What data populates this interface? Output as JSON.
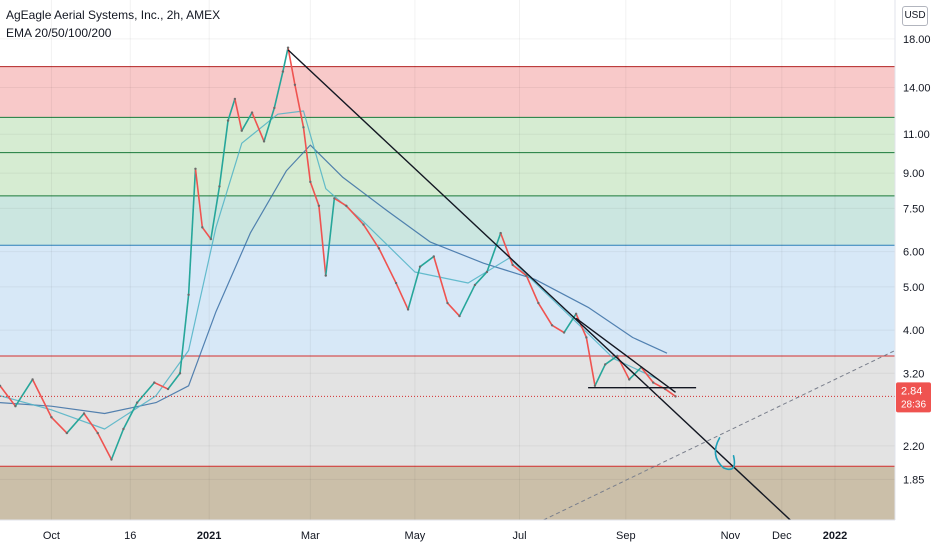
{
  "header": {
    "title": "AgEagle Aerial Systems, Inc., 2h, AMEX",
    "indicator": "EMA 20/50/100/200"
  },
  "currency_button": "USD",
  "price_badge": {
    "price": "2.84",
    "countdown": "28:36",
    "color": "#ef5350"
  },
  "chart_data": {
    "type": "line",
    "title": "AgEagle Aerial Systems, Inc., 2h, AMEX",
    "y_scale": "log",
    "ylim": [
      1.5,
      22.0
    ],
    "x_range": [
      "2020-09-01",
      "2022-02-05"
    ],
    "y_ticks": [
      {
        "v": 18.0,
        "label": "18.00"
      },
      {
        "v": 14.0,
        "label": "14.00"
      },
      {
        "v": 11.0,
        "label": "11.00"
      },
      {
        "v": 9.0,
        "label": "9.00"
      },
      {
        "v": 7.5,
        "label": "7.50"
      },
      {
        "v": 6.0,
        "label": "6.00"
      },
      {
        "v": 5.0,
        "label": "5.00"
      },
      {
        "v": 4.0,
        "label": "4.00"
      },
      {
        "v": 3.2,
        "label": "3.20"
      },
      {
        "v": 2.2,
        "label": "2.20"
      },
      {
        "v": 1.85,
        "label": "1.85"
      }
    ],
    "x_ticks": [
      {
        "d": "2020-10-01",
        "label": "Oct"
      },
      {
        "d": "2020-11-16",
        "label": "16"
      },
      {
        "d": "2021-01-01",
        "label": "2021"
      },
      {
        "d": "2021-03-01",
        "label": "Mar"
      },
      {
        "d": "2021-05-01",
        "label": "May"
      },
      {
        "d": "2021-07-01",
        "label": "Jul"
      },
      {
        "d": "2021-09-01",
        "label": "Sep"
      },
      {
        "d": "2021-11-01",
        "label": "Nov"
      },
      {
        "d": "2021-12-01",
        "label": "Dec"
      },
      {
        "d": "2022-01-01",
        "label": "2022"
      }
    ],
    "zones": [
      {
        "from": 12.0,
        "to": 15.6,
        "fill": "#f8c9c9",
        "border": "#b22222"
      },
      {
        "from": 8.0,
        "to": 12.0,
        "fill": "#d6ecd2",
        "border": "#1b7a3b"
      },
      {
        "from": 6.2,
        "to": 8.0,
        "fill": "#cbe6e0",
        "border": "#1b7a3b"
      },
      {
        "from": 3.5,
        "to": 6.2,
        "fill": "#d7e8f7",
        "border": "#2c7fb8"
      },
      {
        "from": 1.98,
        "to": 3.5,
        "fill": "#e3e3e3",
        "border": "#d32f2f"
      },
      {
        "from": 1.5,
        "to": 1.98,
        "fill": "#cbbfa9",
        "border": "#d32f2f"
      }
    ],
    "level_lines": [
      10.0
    ],
    "price": [
      [
        "2020-09-01",
        3.0
      ],
      [
        "2020-09-10",
        2.7
      ],
      [
        "2020-09-20",
        3.1
      ],
      [
        "2020-10-01",
        2.55
      ],
      [
        "2020-10-10",
        2.35
      ],
      [
        "2020-10-20",
        2.6
      ],
      [
        "2020-10-28",
        2.35
      ],
      [
        "2020-11-05",
        2.05
      ],
      [
        "2020-11-12",
        2.4
      ],
      [
        "2020-11-20",
        2.75
      ],
      [
        "2020-11-30",
        3.05
      ],
      [
        "2020-12-08",
        2.95
      ],
      [
        "2020-12-15",
        3.2
      ],
      [
        "2020-12-20",
        4.8
      ],
      [
        "2020-12-24",
        9.2
      ],
      [
        "2020-12-28",
        6.8
      ],
      [
        "2021-01-02",
        6.4
      ],
      [
        "2021-01-07",
        8.4
      ],
      [
        "2021-01-12",
        11.8
      ],
      [
        "2021-01-16",
        13.2
      ],
      [
        "2021-01-20",
        11.2
      ],
      [
        "2021-01-26",
        12.3
      ],
      [
        "2021-02-02",
        10.6
      ],
      [
        "2021-02-08",
        12.6
      ],
      [
        "2021-02-13",
        15.2
      ],
      [
        "2021-02-16",
        17.2
      ],
      [
        "2021-02-20",
        14.2
      ],
      [
        "2021-02-25",
        11.4
      ],
      [
        "2021-03-01",
        8.6
      ],
      [
        "2021-03-06",
        7.6
      ],
      [
        "2021-03-10",
        5.3
      ],
      [
        "2021-03-15",
        7.9
      ],
      [
        "2021-03-22",
        7.6
      ],
      [
        "2021-04-01",
        6.9
      ],
      [
        "2021-04-10",
        6.1
      ],
      [
        "2021-04-20",
        5.1
      ],
      [
        "2021-04-27",
        4.45
      ],
      [
        "2021-05-04",
        5.55
      ],
      [
        "2021-05-12",
        5.85
      ],
      [
        "2021-05-20",
        4.6
      ],
      [
        "2021-05-27",
        4.3
      ],
      [
        "2021-06-05",
        5.05
      ],
      [
        "2021-06-12",
        5.4
      ],
      [
        "2021-06-20",
        6.6
      ],
      [
        "2021-06-27",
        5.6
      ],
      [
        "2021-07-05",
        5.3
      ],
      [
        "2021-07-12",
        4.6
      ],
      [
        "2021-07-20",
        4.1
      ],
      [
        "2021-07-27",
        3.95
      ],
      [
        "2021-08-03",
        4.35
      ],
      [
        "2021-08-09",
        3.85
      ],
      [
        "2021-08-14",
        3.0
      ],
      [
        "2021-08-20",
        3.35
      ],
      [
        "2021-08-27",
        3.5
      ],
      [
        "2021-09-03",
        3.1
      ],
      [
        "2021-09-10",
        3.3
      ],
      [
        "2021-09-17",
        3.05
      ],
      [
        "2021-09-24",
        2.95
      ],
      [
        "2021-09-30",
        2.84
      ]
    ],
    "ema_short": [
      [
        "2020-09-01",
        2.85
      ],
      [
        "2020-10-01",
        2.65
      ],
      [
        "2020-11-01",
        2.4
      ],
      [
        "2020-12-01",
        2.85
      ],
      [
        "2020-12-20",
        3.6
      ],
      [
        "2021-01-05",
        6.8
      ],
      [
        "2021-01-20",
        10.5
      ],
      [
        "2021-02-10",
        12.2
      ],
      [
        "2021-02-25",
        12.4
      ],
      [
        "2021-03-10",
        8.3
      ],
      [
        "2021-04-01",
        7.0
      ],
      [
        "2021-05-01",
        5.4
      ],
      [
        "2021-06-01",
        5.1
      ],
      [
        "2021-06-25",
        5.8
      ],
      [
        "2021-07-15",
        4.9
      ],
      [
        "2021-08-05",
        4.1
      ],
      [
        "2021-08-25",
        3.45
      ],
      [
        "2021-09-20",
        3.1
      ]
    ],
    "ema_long": [
      [
        "2020-09-01",
        2.75
      ],
      [
        "2020-10-01",
        2.7
      ],
      [
        "2020-11-01",
        2.6
      ],
      [
        "2020-12-01",
        2.75
      ],
      [
        "2020-12-20",
        3.0
      ],
      [
        "2021-01-05",
        4.4
      ],
      [
        "2021-01-25",
        6.6
      ],
      [
        "2021-02-15",
        9.1
      ],
      [
        "2021-03-01",
        10.4
      ],
      [
        "2021-03-20",
        8.8
      ],
      [
        "2021-04-15",
        7.4
      ],
      [
        "2021-05-10",
        6.3
      ],
      [
        "2021-06-10",
        5.65
      ],
      [
        "2021-07-10",
        5.2
      ],
      [
        "2021-08-10",
        4.5
      ],
      [
        "2021-09-05",
        3.85
      ],
      [
        "2021-09-25",
        3.55
      ]
    ],
    "trendlines": [
      {
        "from": [
          "2021-02-16",
          17.0
        ],
        "to": [
          "2021-12-10",
          1.45
        ],
        "color": "#131722",
        "style": "solid"
      },
      {
        "from": [
          "2021-08-03",
          4.25
        ],
        "to": [
          "2021-09-30",
          2.9
        ],
        "color": "#131722",
        "style": "solid"
      },
      {
        "from": [
          "2021-08-10",
          2.97
        ],
        "to": [
          "2021-10-12",
          2.97
        ],
        "color": "#131722",
        "style": "solid"
      },
      {
        "from": [
          "2021-07-15",
          1.5
        ],
        "to": [
          "2022-02-05",
          3.6
        ],
        "color": "#7a7f8c",
        "style": "dashed"
      }
    ],
    "current_price": 2.84
  }
}
